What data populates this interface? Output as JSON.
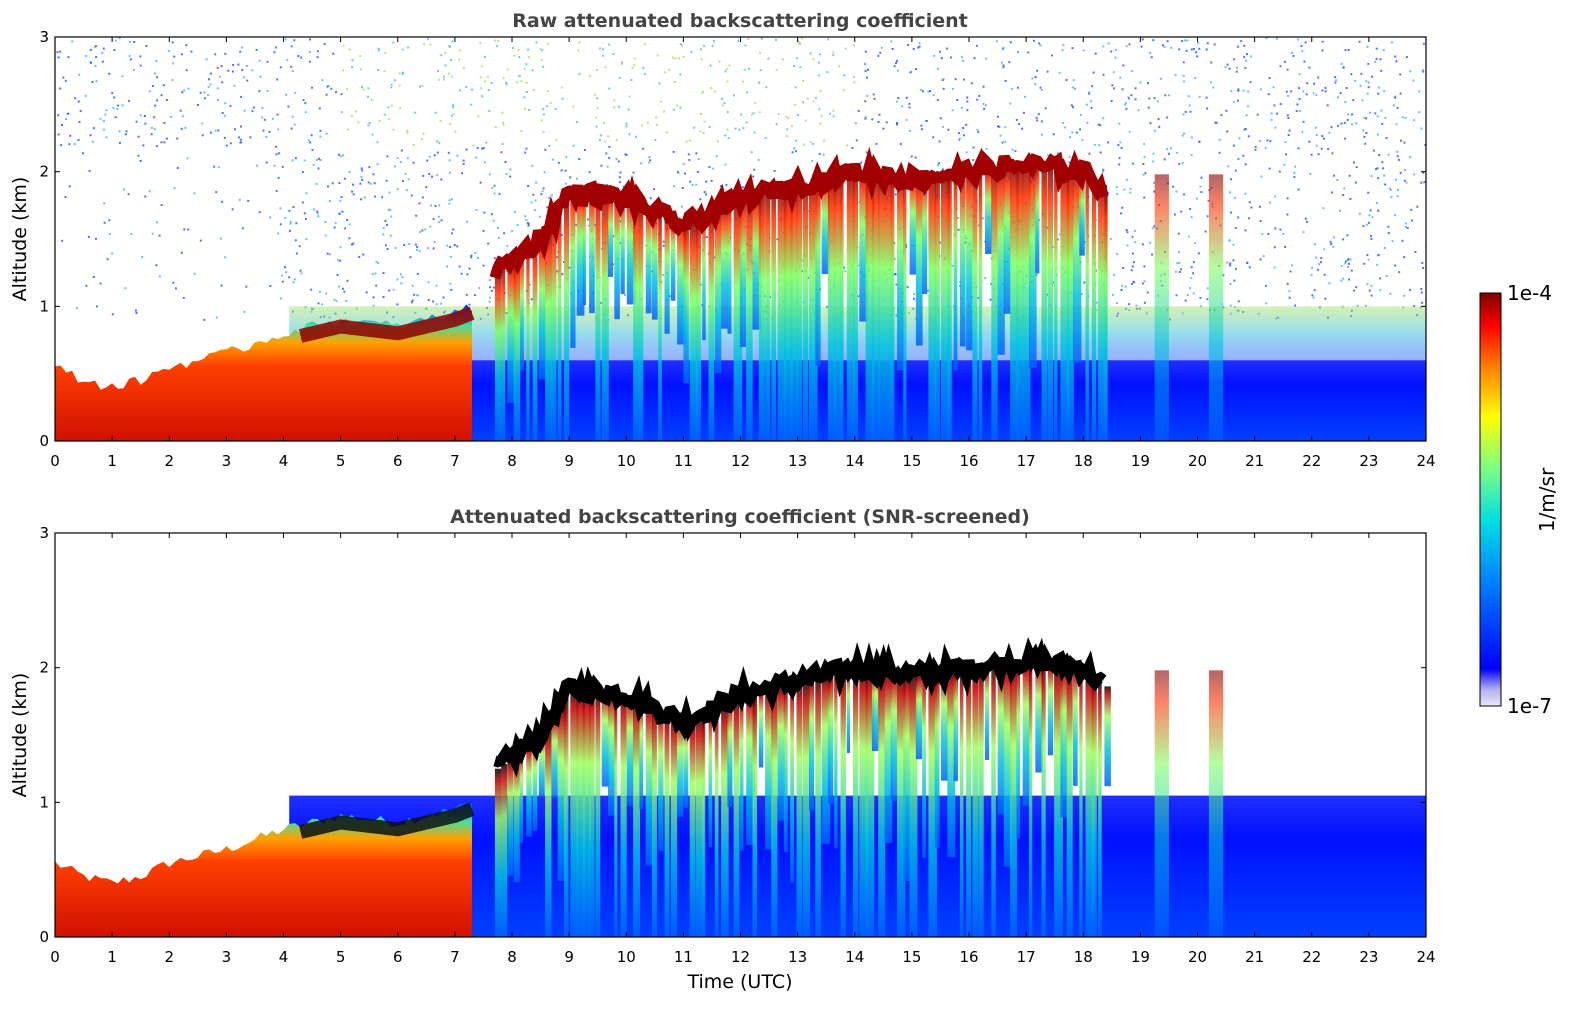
{
  "chart_data": [
    {
      "type": "heatmap",
      "title": "Raw attenuated backscattering coefficient",
      "xlabel": "",
      "ylabel": "Altitude (km)",
      "xlim": [
        0,
        24
      ],
      "ylim": [
        0,
        3
      ],
      "xticks": [
        "0",
        "1",
        "2",
        "3",
        "4",
        "5",
        "6",
        "7",
        "8",
        "9",
        "10",
        "11",
        "12",
        "13",
        "14",
        "15",
        "16",
        "17",
        "18",
        "19",
        "20",
        "21",
        "22",
        "23",
        "24"
      ],
      "yticks": [
        "0",
        "1",
        "2",
        "3"
      ],
      "colorbar": {
        "label": "1/m/sr",
        "min_label": "1e-7",
        "max_label": "1e-4",
        "scale": "log",
        "colormap": "jet"
      },
      "layers": {
        "boundary_layer_top_km": [
          [
            0,
            0.55
          ],
          [
            0.5,
            0.45
          ],
          [
            1,
            0.4
          ],
          [
            1.5,
            0.45
          ],
          [
            2,
            0.55
          ],
          [
            3,
            0.65
          ],
          [
            4,
            0.8
          ],
          [
            5,
            0.9
          ],
          [
            6,
            0.85
          ],
          [
            7,
            0.95
          ],
          [
            7.3,
            1.0
          ]
        ],
        "cloud_base_top_km": [
          [
            7.7,
            1.25
          ],
          [
            8.5,
            1.5
          ],
          [
            9,
            1.85
          ],
          [
            10,
            1.8
          ],
          [
            11,
            1.6
          ],
          [
            12,
            1.8
          ],
          [
            13,
            1.9
          ],
          [
            14,
            2.0
          ],
          [
            15,
            1.95
          ],
          [
            16,
            2.0
          ],
          [
            17,
            2.05
          ],
          [
            18,
            2.0
          ],
          [
            18.4,
            1.85
          ]
        ],
        "noise_floor_km_after_noon": 0.6
      },
      "grid": false
    },
    {
      "type": "heatmap",
      "title": "Attenuated backscattering coefficient (SNR-screened)",
      "xlabel": "Time (UTC)",
      "ylabel": "Altitude (km)",
      "xlim": [
        0,
        24
      ],
      "ylim": [
        0,
        3
      ],
      "xticks": [
        "0",
        "1",
        "2",
        "3",
        "4",
        "5",
        "6",
        "7",
        "8",
        "9",
        "10",
        "11",
        "12",
        "13",
        "14",
        "15",
        "16",
        "17",
        "18",
        "19",
        "20",
        "21",
        "22",
        "23",
        "24"
      ],
      "yticks": [
        "0",
        "1",
        "2",
        "3"
      ],
      "screening": {
        "signal_top_km_after_noon": 1.05,
        "blank_above_km": 2.2
      },
      "grid": false
    }
  ],
  "colors": {
    "title": "#444444",
    "colormap_stops": [
      "#e8e8f8",
      "#0000ff",
      "#0080ff",
      "#00e0e0",
      "#80ff80",
      "#ffff00",
      "#ff8000",
      "#ff0000",
      "#800000"
    ]
  }
}
